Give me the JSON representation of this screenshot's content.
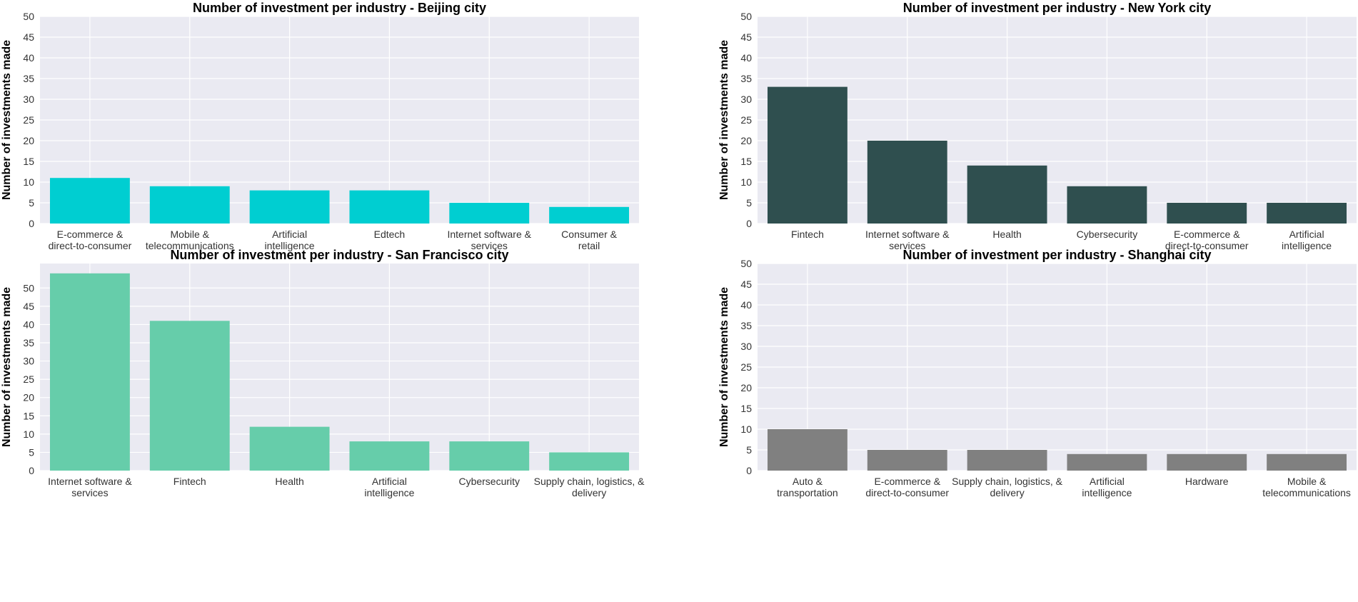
{
  "chart_data": [
    {
      "type": "bar",
      "title": "Number of investment per industry - Beijing city",
      "ylabel": "Number of investments made",
      "xlabel": "",
      "categories": [
        [
          "E-commerce &",
          "direct-to-consumer"
        ],
        [
          "Mobile &",
          "telecommunications"
        ],
        [
          "Artificial",
          "intelligence"
        ],
        [
          "Edtech"
        ],
        [
          "Internet software &",
          "services"
        ],
        [
          "Consumer &",
          "retail"
        ]
      ],
      "values": [
        11,
        9,
        8,
        8,
        5,
        4
      ],
      "color": "#00ced1",
      "ylim": [
        0,
        50
      ],
      "yticks": [
        0,
        5,
        10,
        15,
        20,
        25,
        30,
        35,
        40,
        45,
        50
      ],
      "grid": true
    },
    {
      "type": "bar",
      "title": "Number of investment per industry - New York city",
      "ylabel": "Number of investments made",
      "xlabel": "",
      "categories": [
        [
          "Fintech"
        ],
        [
          "Internet software &",
          "services"
        ],
        [
          "Health"
        ],
        [
          "Cybersecurity"
        ],
        [
          "E-commerce &",
          "direct-to-consumer"
        ],
        [
          "Artificial",
          "intelligence"
        ]
      ],
      "values": [
        33,
        20,
        14,
        9,
        5,
        5
      ],
      "color": "#2f4f4f",
      "ylim": [
        0,
        50
      ],
      "yticks": [
        0,
        5,
        10,
        15,
        20,
        25,
        30,
        35,
        40,
        45,
        50
      ],
      "grid": true
    },
    {
      "type": "bar",
      "title": "Number of investment per industry - San Francisco city",
      "ylabel": "Number of investments made",
      "xlabel": "",
      "categories": [
        [
          "Internet software &",
          "services"
        ],
        [
          "Fintech"
        ],
        [
          "Health"
        ],
        [
          "Artificial",
          "intelligence"
        ],
        [
          "Cybersecurity"
        ],
        [
          "Supply chain, logistics, &",
          "delivery"
        ]
      ],
      "values": [
        54,
        41,
        12,
        8,
        8,
        5
      ],
      "color": "#66cdaa",
      "ylim": [
        0,
        56.7
      ],
      "yticks": [
        0,
        5,
        10,
        15,
        20,
        25,
        30,
        35,
        40,
        45,
        50
      ],
      "grid": true
    },
    {
      "type": "bar",
      "title": "Number of investment per industry - Shanghai city",
      "ylabel": "Number of investments made",
      "xlabel": "",
      "categories": [
        [
          "Auto &",
          "transportation"
        ],
        [
          "E-commerce &",
          "direct-to-consumer"
        ],
        [
          "Supply chain, logistics, &",
          "delivery"
        ],
        [
          "Artificial",
          "intelligence"
        ],
        [
          "Hardware"
        ],
        [
          "Mobile &",
          "telecommunications"
        ]
      ],
      "values": [
        10,
        5,
        5,
        4,
        4,
        4
      ],
      "color": "#808080",
      "ylim": [
        0,
        50
      ],
      "yticks": [
        0,
        5,
        10,
        15,
        20,
        25,
        30,
        35,
        40,
        45,
        50
      ],
      "grid": true
    }
  ],
  "style": {
    "panel_background": "#eaeaf2",
    "grid_color": "#ffffff"
  }
}
